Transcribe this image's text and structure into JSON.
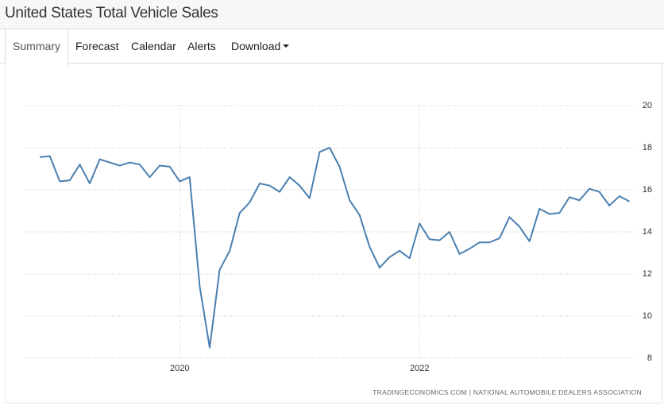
{
  "header": {
    "title": "United States Total Vehicle Sales"
  },
  "tabs": [
    "Summary",
    "Forecast",
    "Calendar",
    "Alerts",
    "Download"
  ],
  "chart_data": {
    "type": "line",
    "color": "#4a7fb0",
    "x": [
      2018.833,
      2018.917,
      2019,
      2019.083,
      2019.167,
      2019.25,
      2019.333,
      2019.417,
      2019.5,
      2019.583,
      2019.667,
      2019.75,
      2019.833,
      2019.917,
      2020,
      2020.083,
      2020.167,
      2020.25,
      2020.333,
      2020.417,
      2020.5,
      2020.583,
      2020.667,
      2020.75,
      2020.833,
      2020.917,
      2021,
      2021.083,
      2021.167,
      2021.25,
      2021.333,
      2021.417,
      2021.5,
      2021.583,
      2021.667,
      2021.75,
      2021.833,
      2021.917,
      2022,
      2022.083,
      2022.167,
      2022.25,
      2022.333,
      2022.417,
      2022.5,
      2022.583,
      2022.667,
      2022.75,
      2022.833,
      2022.917,
      2023,
      2023.083,
      2023.167,
      2023.25,
      2023.333,
      2023.417,
      2023.5,
      2023.583,
      2023.667,
      2023.75
    ],
    "values": [
      17.55,
      17.6,
      16.4,
      16.45,
      17.2,
      16.3,
      17.45,
      17.3,
      17.15,
      17.3,
      17.2,
      16.6,
      17.15,
      17.1,
      16.4,
      16.6,
      11.4,
      8.5,
      12.2,
      13.1,
      14.9,
      15.4,
      16.3,
      16.2,
      15.9,
      16.6,
      16.2,
      15.6,
      17.8,
      18.0,
      17.1,
      15.5,
      14.8,
      13.3,
      12.3,
      12.8,
      13.1,
      12.75,
      14.4,
      13.65,
      13.6,
      14.0,
      12.95,
      13.2,
      13.5,
      13.5,
      13.7,
      14.7,
      14.25,
      13.55,
      15.1,
      14.85,
      14.9,
      15.65,
      15.5,
      16.05,
      15.9,
      15.25,
      15.7,
      15.45
    ],
    "xlim": [
      2018.72,
      2023.8
    ],
    "xticks": [
      2020,
      2022
    ],
    "ylim": [
      8,
      20
    ],
    "yticks": [
      8,
      10,
      12,
      14,
      16,
      18,
      20
    ],
    "grid": true
  },
  "source": "TRADINGECONOMICS.COM  |  NATIONAL AUTOMOBILE DEALERS ASSOCIATION"
}
